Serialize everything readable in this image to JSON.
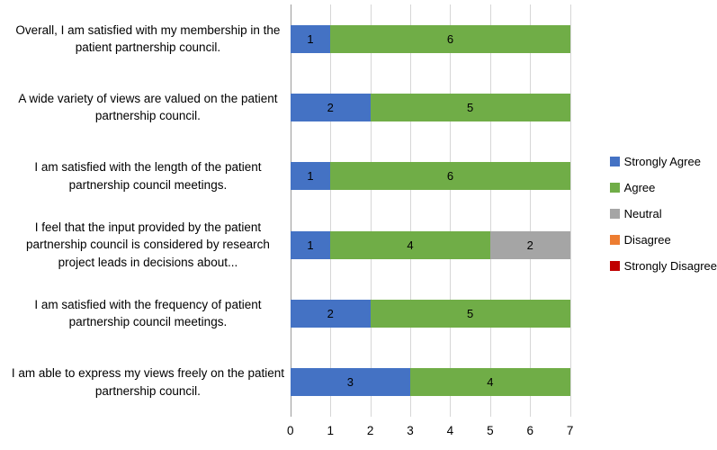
{
  "chart_data": {
    "type": "bar",
    "orientation": "horizontal",
    "stacked": true,
    "title": "",
    "xlabel": "",
    "ylabel": "",
    "xlim": [
      0,
      7
    ],
    "x_ticks": [
      0,
      1,
      2,
      3,
      4,
      5,
      6,
      7
    ],
    "grid": true,
    "legend_position": "right",
    "categories": [
      "Overall, I am satisfied with my membership in the patient partnership council.",
      "A wide variety of views are valued on the patient partnership council.",
      "I am satisfied with the length of the patient partnership council meetings.",
      "I feel that the input provided by the patient partnership council is considered by research project leads in decisions about...",
      "I am satisfied with the frequency of patient partnership council meetings.",
      "I am able to express my views freely on the patient partnership council."
    ],
    "series": [
      {
        "name": "Strongly Agree",
        "color": "#4472C4",
        "values": [
          1,
          2,
          1,
          1,
          2,
          3
        ]
      },
      {
        "name": "Agree",
        "color": "#70AD47",
        "values": [
          6,
          5,
          6,
          4,
          5,
          4
        ]
      },
      {
        "name": "Neutral",
        "color": "#A5A5A5",
        "values": [
          0,
          0,
          0,
          2,
          0,
          0
        ]
      },
      {
        "name": "Disagree",
        "color": "#ED7D31",
        "values": [
          0,
          0,
          0,
          0,
          0,
          0
        ]
      },
      {
        "name": "Strongly Disagree",
        "color": "#C00000",
        "values": [
          0,
          0,
          0,
          0,
          0,
          0
        ]
      }
    ]
  },
  "colors": {
    "gridline": "#D6D6D6",
    "axis_line": "#9B9B9B",
    "text": "#000000",
    "background": "#FFFFFF"
  }
}
